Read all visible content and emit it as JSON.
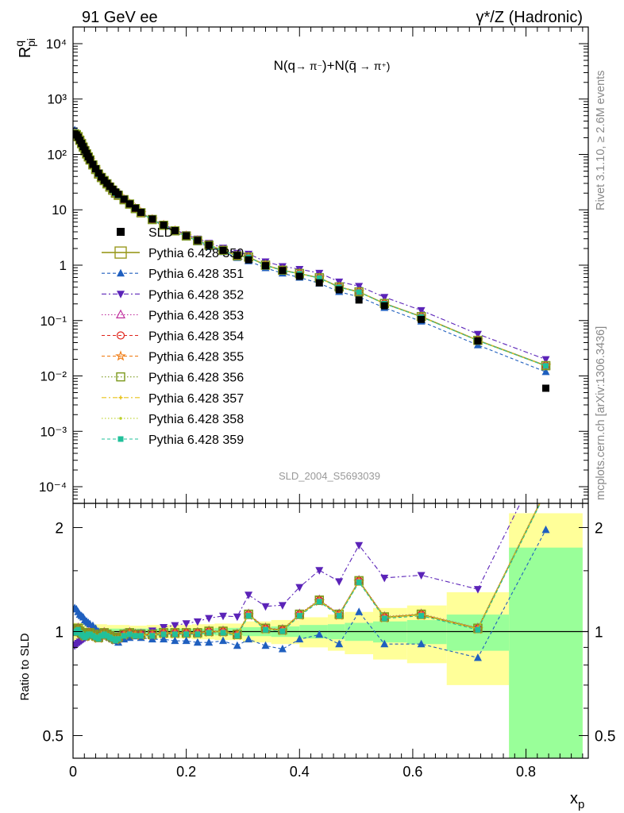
{
  "header": {
    "left": "91 GeV ee",
    "right": "γ*/Z (Hadronic)"
  },
  "side_labels": {
    "rivet": "Rivet 3.1.10, ≥ 2.6M events",
    "mcplots": "mcplots.cern.ch [arXiv:1306.3436]"
  },
  "chart_data": [
    {
      "type": "line",
      "scale": "log",
      "title": "N(q → π⁻)+N(q̄ → π⁺)",
      "ylabel": "R^q_pi",
      "watermark": "SLD_2004_S5693039",
      "xlim": [
        0,
        0.91
      ],
      "ylim": [
        5e-05,
        20000
      ],
      "ytick_values": [
        0.0001,
        0.001,
        0.01,
        0.1,
        1,
        10,
        100,
        1000,
        10000
      ],
      "ytick_labels": [
        "10⁻⁴",
        "10⁻³",
        "10⁻²",
        "10⁻¹",
        "1",
        "10",
        "10²",
        "10³",
        "10⁴"
      ],
      "legend_placement": "middle-left",
      "x": [
        0.003,
        0.006,
        0.009,
        0.012,
        0.015,
        0.018,
        0.021,
        0.024,
        0.027,
        0.03,
        0.035,
        0.04,
        0.045,
        0.05,
        0.055,
        0.06,
        0.065,
        0.07,
        0.075,
        0.08,
        0.09,
        0.1,
        0.11,
        0.12,
        0.14,
        0.16,
        0.18,
        0.2,
        0.22,
        0.24,
        0.265,
        0.29,
        0.31,
        0.34,
        0.37,
        0.4,
        0.435,
        0.47,
        0.505,
        0.55,
        0.615,
        0.715,
        0.835
      ],
      "data_series": {
        "name": "SLD",
        "y": [
          235,
          225,
          205,
          180,
          158,
          138,
          120,
          104,
          91,
          80,
          66,
          55,
          46,
          39,
          34,
          30,
          26.5,
          23.5,
          21,
          19,
          15.5,
          12.8,
          10.7,
          9.0,
          6.8,
          5.3,
          4.2,
          3.4,
          2.8,
          2.3,
          1.85,
          1.5,
          1.25,
          0.98,
          0.8,
          0.63,
          0.48,
          0.36,
          0.235,
          0.185,
          0.105,
          0.043,
          0.006
        ]
      },
      "series": [
        {
          "name": "Pythia 6.428 350",
          "color": "#9a9a1e",
          "marker": "open-square",
          "dash": "solid"
        },
        {
          "name": "Pythia 6.428 351",
          "color": "#1f5fbf",
          "marker": "triangle-up",
          "dash": "4,3"
        },
        {
          "name": "Pythia 6.428 352",
          "color": "#5b23b8",
          "marker": "triangle-down",
          "dash": "6,3,2,3"
        },
        {
          "name": "Pythia 6.428 353",
          "color": "#c0309e",
          "marker": "open-triangle",
          "dash": "1.5,2.5"
        },
        {
          "name": "Pythia 6.428 354",
          "color": "#e0241b",
          "marker": "open-circle",
          "dash": "4,3"
        },
        {
          "name": "Pythia 6.428 355",
          "color": "#f07f1a",
          "marker": "open-star",
          "dash": "4,3"
        },
        {
          "name": "Pythia 6.428 356",
          "color": "#7d9a1e",
          "marker": "open-square",
          "dash": "1.5,2.5"
        },
        {
          "name": "Pythia 6.428 357",
          "color": "#e8c31a",
          "marker": "tick",
          "dash": "6,3,2,3"
        },
        {
          "name": "Pythia 6.428 358",
          "color": "#bcd12a",
          "marker": "dot",
          "dash": "1.5,2.5"
        },
        {
          "name": "Pythia 6.428 359",
          "color": "#21c09a",
          "marker": "filled-square",
          "dash": "4,3"
        }
      ],
      "ratio_to_data": {
        "350": [
          1.0,
          1.01,
          1.02,
          1.0,
          0.99,
          0.98,
          0.97,
          0.98,
          0.99,
          0.99,
          0.98,
          0.97,
          0.96,
          0.98,
          0.99,
          0.98,
          0.97,
          0.96,
          0.95,
          0.96,
          0.98,
          0.99,
          0.98,
          0.98,
          0.98,
          0.99,
          0.99,
          0.99,
          0.99,
          1.0,
          1.0,
          0.98,
          1.12,
          1.02,
          1.01,
          1.12,
          1.23,
          1.12,
          1.4,
          1.1,
          1.12,
          1.02,
          2.55
        ],
        "351": [
          1.17,
          1.16,
          1.14,
          1.12,
          1.11,
          1.1,
          1.08,
          1.07,
          1.06,
          1.05,
          1.04,
          1.02,
          1.0,
          0.99,
          0.98,
          0.97,
          0.96,
          0.95,
          0.94,
          0.93,
          0.95,
          0.96,
          0.97,
          0.96,
          0.95,
          0.95,
          0.94,
          0.94,
          0.93,
          0.93,
          0.94,
          0.91,
          0.95,
          0.91,
          0.89,
          0.95,
          0.98,
          0.92,
          1.14,
          0.92,
          0.92,
          0.84,
          1.97
        ]
      },
      "ratio_350_to_359_offsets": {
        "353": 0.005,
        "354": 0.0,
        "355": -0.005,
        "356": 0.003,
        "357": -0.003,
        "358": 0.002,
        "359": -0.008
      },
      "ratio_352_scale": 1.3
    },
    {
      "type": "line",
      "panel": "ratio",
      "ylabel": "Ratio to SLD",
      "xlabel": "x_p",
      "xlim": [
        0,
        0.91
      ],
      "ylim": [
        0.43,
        2.35
      ],
      "yscale": "log",
      "ytick_labels": [
        "0.5",
        "1",
        "2"
      ],
      "xtick_labels": [
        "0",
        "0.2",
        "0.4",
        "0.6",
        "0.8"
      ],
      "bands": [
        {
          "x0": 0.0,
          "x1": 0.02,
          "stat": 0.025,
          "tot": 0.06
        },
        {
          "x0": 0.02,
          "x1": 0.06,
          "stat": 0.02,
          "tot": 0.05
        },
        {
          "x0": 0.06,
          "x1": 0.1,
          "stat": 0.02,
          "tot": 0.045
        },
        {
          "x0": 0.1,
          "x1": 0.13,
          "stat": 0.02,
          "tot": 0.04
        },
        {
          "x0": 0.13,
          "x1": 0.17,
          "stat": 0.02,
          "tot": 0.045
        },
        {
          "x0": 0.17,
          "x1": 0.21,
          "stat": 0.02,
          "tot": 0.045
        },
        {
          "x0": 0.21,
          "x1": 0.25,
          "stat": 0.02,
          "tot": 0.05
        },
        {
          "x0": 0.25,
          "x1": 0.3,
          "stat": 0.025,
          "tot": 0.055
        },
        {
          "x0": 0.3,
          "x1": 0.35,
          "stat": 0.03,
          "tot": 0.07
        },
        {
          "x0": 0.35,
          "x1": 0.4,
          "stat": 0.035,
          "tot": 0.08
        },
        {
          "x0": 0.4,
          "x1": 0.45,
          "stat": 0.045,
          "tot": 0.1
        },
        {
          "x0": 0.45,
          "x1": 0.48,
          "stat": 0.05,
          "tot": 0.12
        },
        {
          "x0": 0.48,
          "x1": 0.53,
          "stat": 0.06,
          "tot": 0.14
        },
        {
          "x0": 0.53,
          "x1": 0.59,
          "stat": 0.07,
          "tot": 0.17
        },
        {
          "x0": 0.59,
          "x1": 0.66,
          "stat": 0.08,
          "tot": 0.19
        },
        {
          "x0": 0.66,
          "x1": 0.77,
          "stat": 0.12,
          "tot": 0.3
        },
        {
          "x0": 0.77,
          "x1": 0.9,
          "stat": 0.75,
          "tot": 1.2
        }
      ]
    }
  ]
}
